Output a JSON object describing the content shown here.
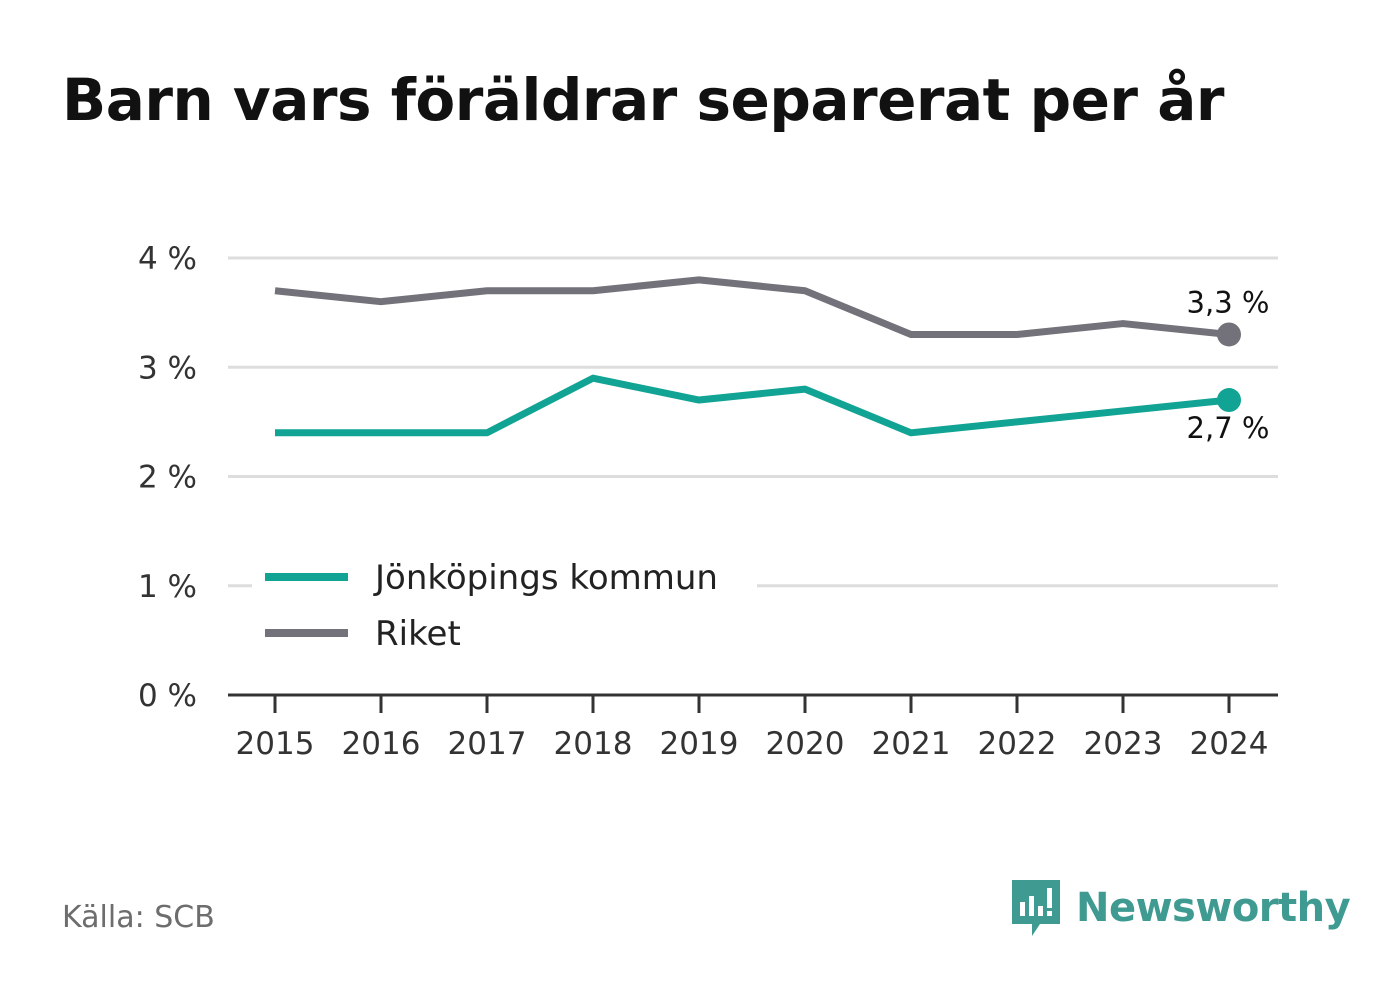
{
  "title": "Barn vars föräldrar separerat per år",
  "source": "Källa: SCB",
  "brand": {
    "name": "Newsworthy",
    "icon": "newsworthy-logo-icon",
    "color": "#3f9b91"
  },
  "chart_data": {
    "type": "line",
    "title": "Barn vars föräldrar separerat per år",
    "xlabel": "",
    "ylabel": "",
    "x": [
      "2015",
      "2016",
      "2017",
      "2018",
      "2019",
      "2020",
      "2021",
      "2022",
      "2023",
      "2024"
    ],
    "ylim": [
      0,
      4
    ],
    "yticks": [
      0,
      1,
      2,
      3,
      4
    ],
    "ytick_labels": [
      "0 %",
      "1 %",
      "2 %",
      "3 %",
      "4 %"
    ],
    "grid": true,
    "legend_position": "bottom-left",
    "series": [
      {
        "name": "Jönköpings kommun",
        "color": "#11a394",
        "values": [
          2.4,
          2.4,
          2.4,
          2.9,
          2.7,
          2.8,
          2.4,
          2.5,
          2.6,
          2.7
        ],
        "end_label": "2,7 %"
      },
      {
        "name": "Riket",
        "color": "#737179",
        "values": [
          3.7,
          3.6,
          3.7,
          3.7,
          3.8,
          3.7,
          3.3,
          3.3,
          3.4,
          3.3
        ],
        "end_label": "3,3 %"
      }
    ]
  }
}
